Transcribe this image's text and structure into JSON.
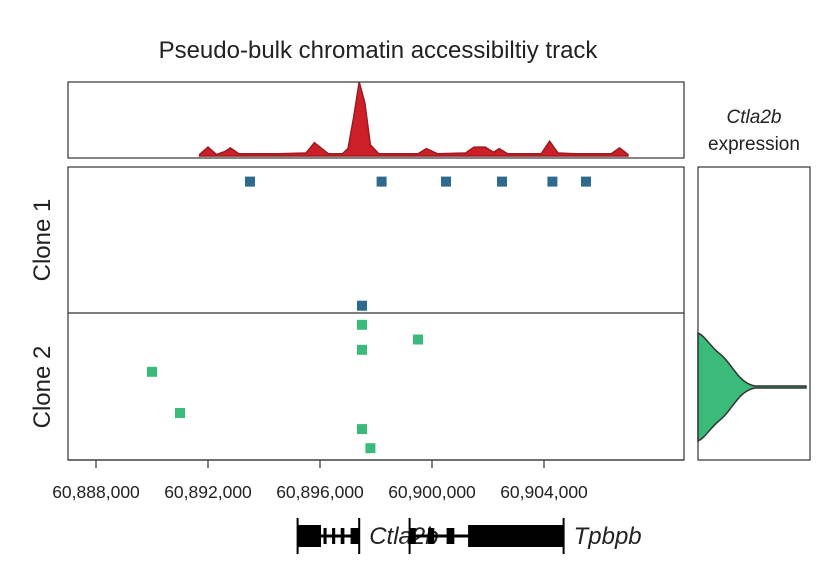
{
  "chart_data": {
    "type": "scatter",
    "title": "Pseudo-bulk chromatin accessibiltiy track",
    "xlabel": "",
    "xlim": [
      60887000,
      60909000
    ],
    "x_ticks": [
      60888000,
      60892000,
      60896000,
      60900000,
      60904000
    ],
    "x_tick_labels": [
      "60,888,000",
      "60,892,000",
      "60,896,000",
      "60,900,000",
      "60,904,000"
    ],
    "accessibility_track": {
      "color": "#cc1f27",
      "ylim": [
        0,
        100
      ],
      "x": [
        60891700,
        60892000,
        60892300,
        60892600,
        60892800,
        60893100,
        60894500,
        60895500,
        60895800,
        60896300,
        60896800,
        60897000,
        60897200,
        60897400,
        60897600,
        60897800,
        60898100,
        60898500,
        60899500,
        60899800,
        60900200,
        60901200,
        60901500,
        60901900,
        60902200,
        60902400,
        60902700,
        60903900,
        60904200,
        60904500,
        60905100,
        60906400,
        60906700,
        60907000
      ],
      "values": [
        2,
        12,
        2,
        6,
        11,
        3,
        3,
        4,
        18,
        3,
        3,
        10,
        52,
        100,
        72,
        15,
        3,
        3,
        3,
        10,
        3,
        4,
        12,
        12,
        5,
        10,
        3,
        3,
        20,
        4,
        3,
        3,
        11,
        2
      ]
    },
    "series": [
      {
        "name": "Clone 1",
        "color": "#2e6a8e",
        "x": [
          60893500,
          60898200,
          60900500,
          60902500,
          60904300,
          60905500,
          60897500
        ],
        "y": [
          0.1,
          0.1,
          0.1,
          0.1,
          0.1,
          0.1,
          0.95
        ]
      },
      {
        "name": "Clone 2",
        "color": "#3bbb7a",
        "x": [
          60897500,
          60897500,
          60899500,
          60890000,
          60891000,
          60897500,
          60897800
        ],
        "y": [
          0.08,
          0.25,
          0.18,
          0.4,
          0.68,
          0.79,
          0.92
        ]
      }
    ],
    "violin": {
      "title_gene": "Ctla2b",
      "title_suffix": "expression",
      "color": "#3bbb7a",
      "widths": [
        0.08,
        0.05,
        0.06,
        0.1,
        0.2,
        0.4,
        0.6,
        1.0,
        0.6,
        0.4,
        0.2,
        0.1,
        0.06,
        0.05,
        0.08
      ]
    },
    "genes": [
      {
        "name": "Ctla2b",
        "start": 60895200,
        "end": 60897400
      },
      {
        "name": "Tpbpb",
        "start": 60899200,
        "end": 60904700
      }
    ]
  }
}
